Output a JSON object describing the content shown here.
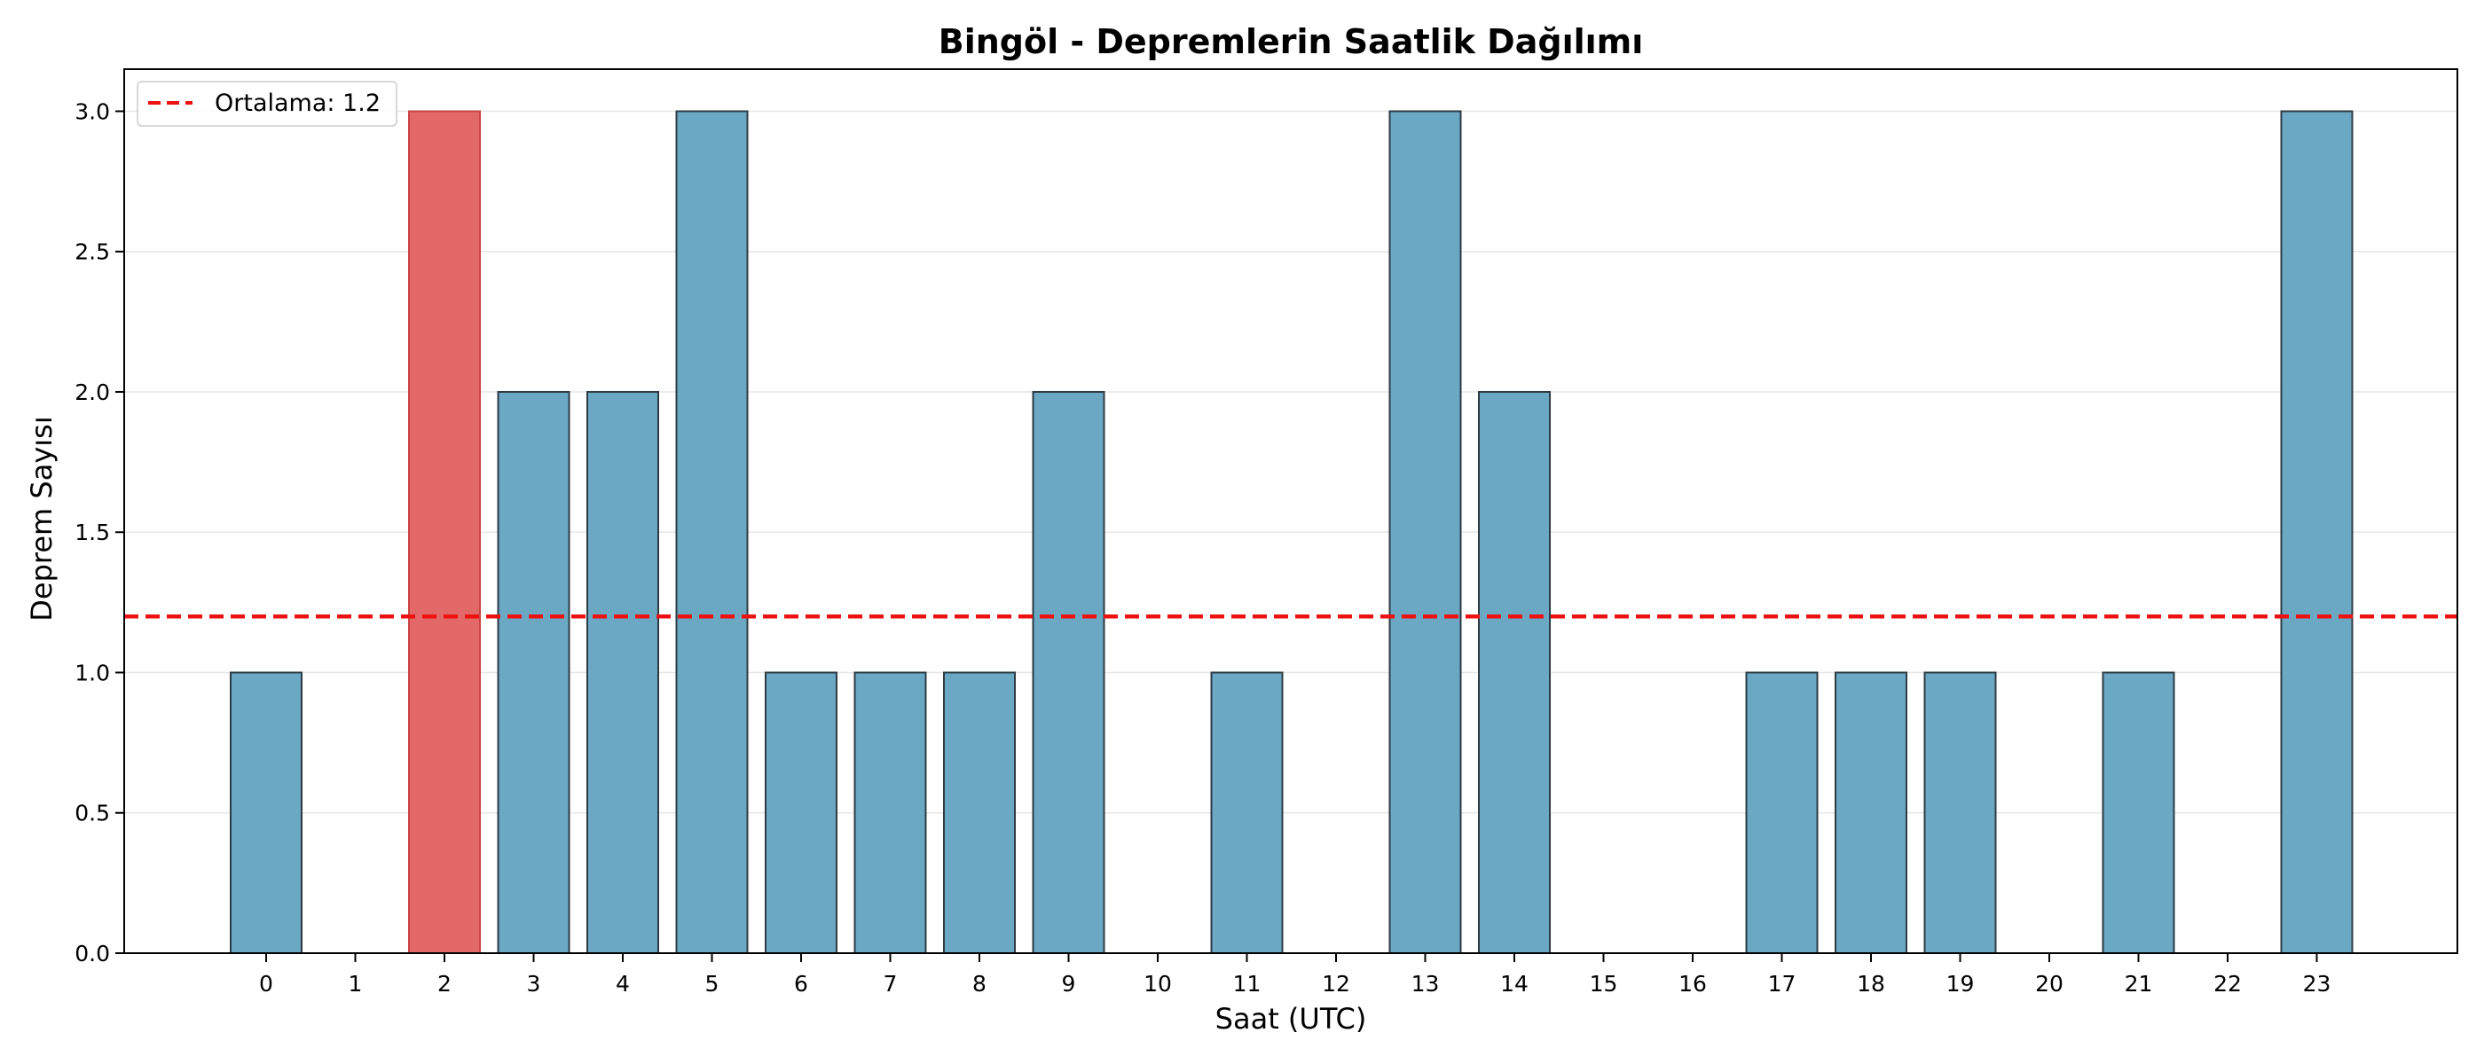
{
  "chart_data": {
    "type": "bar",
    "title": "Bingöl - Depremlerin Saatlik Dağılımı",
    "xlabel": "Saat (UTC)",
    "ylabel": "Deprem Sayısı",
    "categories": [
      "0",
      "1",
      "2",
      "3",
      "4",
      "5",
      "6",
      "7",
      "8",
      "9",
      "10",
      "11",
      "12",
      "13",
      "14",
      "15",
      "16",
      "17",
      "18",
      "19",
      "20",
      "21",
      "22",
      "23"
    ],
    "values": [
      1,
      0,
      3,
      2,
      2,
      3,
      1,
      1,
      1,
      2,
      0,
      1,
      0,
      3,
      2,
      0,
      0,
      1,
      1,
      1,
      0,
      1,
      0,
      3
    ],
    "ylim": [
      0,
      3.15
    ],
    "yticks": [
      0.0,
      0.5,
      1.0,
      1.5,
      2.0,
      2.5,
      3.0
    ],
    "ytick_labels": [
      "0.0",
      "0.5",
      "1.0",
      "1.5",
      "2.0",
      "2.5",
      "3.0"
    ],
    "highlight_index": 2,
    "mean_line": {
      "value": 1.2,
      "label": "Ortalama: 1.2"
    },
    "legend_position": "top-left",
    "grid": "y",
    "colors": {
      "bar": "#6aa8c4",
      "highlight": "#e36868",
      "bar_edge": "#2e3b44",
      "mean_line": "#ee1111",
      "grid": "#e6e6e6"
    }
  }
}
